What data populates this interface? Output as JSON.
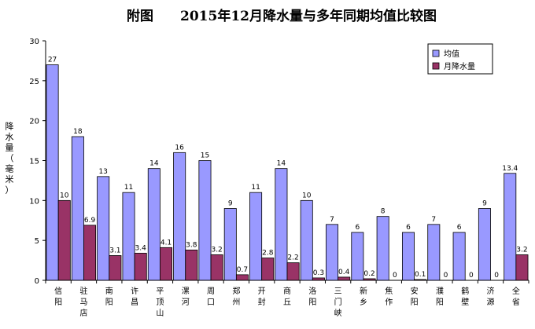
{
  "chart_data": {
    "type": "bar",
    "title": "附图　　2015年12月降水量与多年同期均值比较图",
    "ylabel": "降水量（毫米）",
    "ylim": [
      0,
      30
    ],
    "yticks": [
      0,
      5,
      10,
      15,
      20,
      25,
      30
    ],
    "grid": false,
    "legend_position": "top-right",
    "categories": [
      "信阳",
      "驻马店",
      "南阳",
      "许昌",
      "平顶山",
      "漯河",
      "周口",
      "郑州",
      "开封",
      "商丘",
      "洛阳",
      "三门峡",
      "新乡",
      "焦作",
      "安阳",
      "濮阳",
      "鹤壁",
      "济源",
      "全省"
    ],
    "series": [
      {
        "name": "均值",
        "color": "#9999ff",
        "values": [
          27,
          18,
          13,
          11,
          14,
          16,
          15,
          9,
          11,
          14,
          10,
          7,
          6,
          8,
          6,
          7,
          6,
          9,
          13.4
        ],
        "labels": [
          "27",
          "18",
          "13",
          "11",
          "14",
          "16",
          "15",
          "9",
          "11",
          "14",
          "10",
          "7",
          "6",
          "8",
          "6",
          "7",
          "6",
          "9",
          "13.4"
        ]
      },
      {
        "name": "月降水量",
        "color": "#993366",
        "values": [
          10,
          6.9,
          3.1,
          3.4,
          4.1,
          3.8,
          3.2,
          0.7,
          2.8,
          2.2,
          0.3,
          0.4,
          0.2,
          0,
          0.1,
          0,
          0,
          0,
          3.2
        ],
        "labels": [
          "10",
          "6.9",
          "3.1",
          "3.4",
          "4.1",
          "3.8",
          "3.2",
          "0.7",
          "2.8",
          "2.2",
          "0.3",
          "0.4",
          "0.2",
          "0",
          "0.1",
          "0",
          "0",
          "0",
          "3.2"
        ]
      }
    ]
  }
}
